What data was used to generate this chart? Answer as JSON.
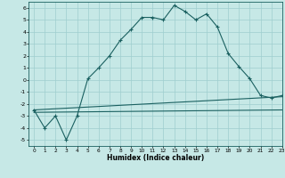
{
  "xlabel": "Humidex (Indice chaleur)",
  "xlim": [
    -0.5,
    23
  ],
  "ylim": [
    -5.5,
    6.5
  ],
  "xticks": [
    0,
    1,
    2,
    3,
    4,
    5,
    6,
    7,
    8,
    9,
    10,
    11,
    12,
    13,
    14,
    15,
    16,
    17,
    18,
    19,
    20,
    21,
    22,
    23
  ],
  "yticks": [
    -5,
    -4,
    -3,
    -2,
    -1,
    0,
    1,
    2,
    3,
    4,
    5,
    6
  ],
  "background_color": "#c6e8e6",
  "grid_color": "#9ecece",
  "line_color": "#1a6060",
  "line1_x": [
    0,
    1,
    2,
    3,
    4,
    5,
    6,
    7,
    8,
    9,
    10,
    11,
    12,
    13,
    14,
    15,
    16,
    17,
    18,
    19,
    20,
    21,
    22,
    23
  ],
  "line1_y": [
    -2.5,
    -4.0,
    -3.0,
    -5.0,
    -3.0,
    0.1,
    1.0,
    2.0,
    3.3,
    4.2,
    5.2,
    5.2,
    5.0,
    6.2,
    5.7,
    5.0,
    5.5,
    4.4,
    2.2,
    1.1,
    0.1,
    -1.3,
    -1.5,
    -1.3
  ],
  "line2_x": [
    0,
    23
  ],
  "line2_y": [
    -2.5,
    -1.4
  ],
  "line3_x": [
    0,
    23
  ],
  "line3_y": [
    -2.7,
    -2.5
  ]
}
